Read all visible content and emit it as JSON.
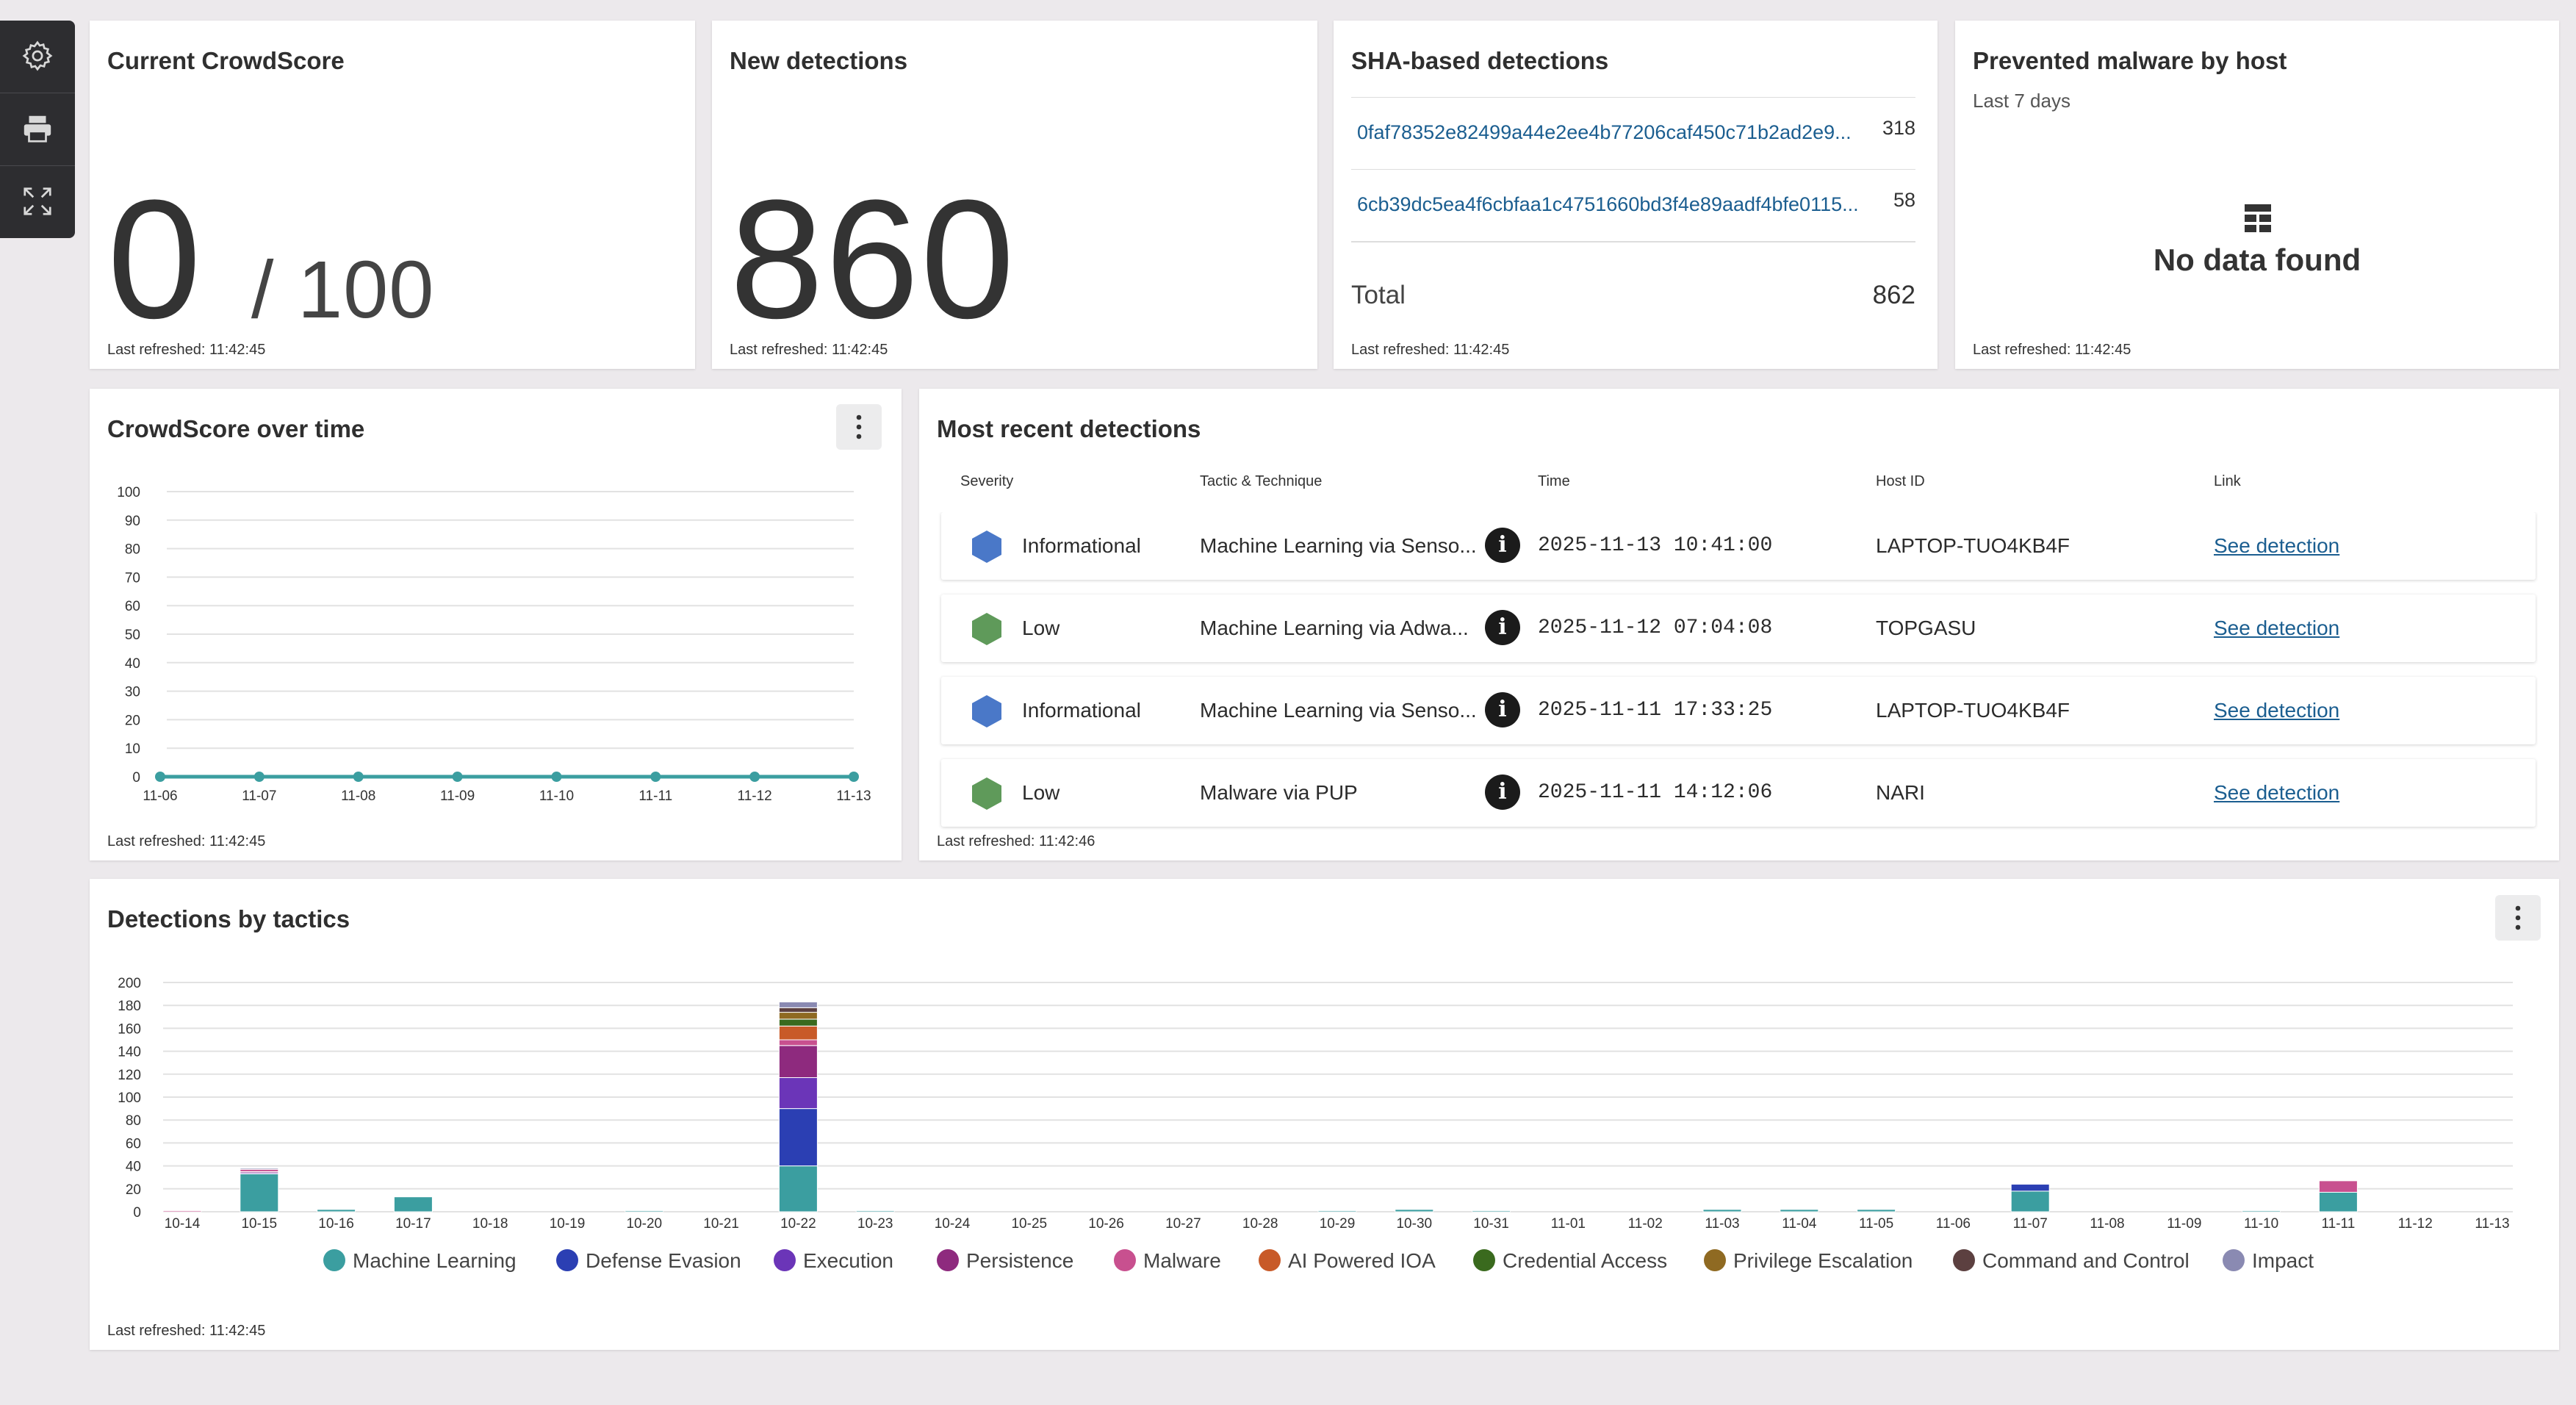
{
  "refreshed": "Last refreshed: 11:42:45",
  "refreshed_recent": "Last refreshed: 11:42:46",
  "crowdscore": {
    "title": "Current CrowdScore",
    "value": "0",
    "denominator": "/ 100"
  },
  "new_detections": {
    "title": "New detections",
    "value": "860"
  },
  "sha": {
    "title": "SHA-based detections",
    "rows": [
      {
        "hash": "0faf78352e82499a44e2ee4b77206caf450c71b2ad2e9...",
        "count": "318"
      },
      {
        "hash": "6cb39dc5ea4f6cbfaa1c4751660bd3f4e89aadf4bfe0115...",
        "count": "58"
      }
    ],
    "total_label": "Total",
    "total_value": "862"
  },
  "prevented": {
    "title": "Prevented malware by host",
    "subtitle": "Last 7 days",
    "empty": "No data found"
  },
  "recent": {
    "title": "Most recent detections",
    "headers": [
      "Severity",
      "Tactic & Technique",
      "Time",
      "Host ID",
      "Link"
    ],
    "rows": [
      {
        "severity": "Informational",
        "tactic": "Machine Learning via Senso...",
        "time": "2025-11-13 10:41:00",
        "host": "LAPTOP-TUO4KB4F",
        "link": "See detection"
      },
      {
        "severity": "Low",
        "tactic": "Machine Learning via Adwa...",
        "time": "2025-11-12 07:04:08",
        "host": "TOPGASU",
        "link": "See detection"
      },
      {
        "severity": "Informational",
        "tactic": "Machine Learning via Senso...",
        "time": "2025-11-11 17:33:25",
        "host": "LAPTOP-TUO4KB4F",
        "link": "See detection"
      },
      {
        "severity": "Low",
        "tactic": "Malware via PUP",
        "time": "2025-11-11 14:12:06",
        "host": "NARI",
        "link": "See detection"
      }
    ],
    "severity_colors": {
      "Informational": "#4a78c8",
      "Low": "#5f9a5a"
    }
  },
  "crowdscore_time": {
    "title": "CrowdScore over time"
  },
  "tactics": {
    "title": "Detections by tactics"
  },
  "icons": {
    "toolbar": [
      "gear-icon",
      "printer-icon",
      "expand-icon"
    ],
    "kebab": "more-vertical-icon",
    "empty": "table-icon",
    "info": "info-icon"
  },
  "colors": {
    "accent": "#3b9ea0",
    "link": "#1b5e90"
  },
  "chart_data": [
    {
      "type": "line",
      "x": [
        "11-06",
        "11-07",
        "11-08",
        "11-09",
        "11-10",
        "11-11",
        "11-12",
        "11-13"
      ],
      "series": [
        {
          "values": [
            0,
            0,
            0,
            0,
            0,
            0,
            0,
            0
          ],
          "color": "#3b9ea0"
        }
      ],
      "ylim": [
        0,
        100
      ],
      "yticks": [
        0,
        10,
        20,
        30,
        40,
        50,
        60,
        70,
        80,
        90,
        100
      ],
      "grid": true
    },
    {
      "type": "bar",
      "stacked": true,
      "categories": [
        "10-14",
        "10-15",
        "10-16",
        "10-17",
        "10-18",
        "10-19",
        "10-20",
        "10-21",
        "10-22",
        "10-23",
        "10-24",
        "10-25",
        "10-26",
        "10-27",
        "10-28",
        "10-29",
        "10-30",
        "10-31",
        "11-01",
        "11-02",
        "11-03",
        "11-04",
        "11-05",
        "11-06",
        "11-07",
        "11-08",
        "11-09",
        "11-10",
        "11-11",
        "11-12",
        "11-13"
      ],
      "ylim": [
        0,
        200
      ],
      "yticks": [
        0,
        20,
        40,
        60,
        80,
        100,
        120,
        140,
        160,
        180,
        200
      ],
      "grid": true,
      "legend_position": "bottom",
      "series": [
        {
          "name": "Machine Learning",
          "color": "#3b9ea0",
          "values": [
            0,
            33,
            2,
            13,
            0,
            0,
            1,
            0,
            40,
            1,
            0,
            0,
            0,
            0,
            0,
            1,
            2,
            1,
            0,
            0,
            2,
            2,
            2,
            0,
            18,
            0,
            0,
            1,
            17,
            0,
            0
          ]
        },
        {
          "name": "Defense Evasion",
          "color": "#2b3fb3",
          "values": [
            0,
            0,
            0,
            0,
            0,
            0,
            0,
            0,
            50,
            0,
            0,
            0,
            0,
            0,
            0,
            0,
            0,
            0,
            0,
            0,
            0,
            0,
            0,
            0,
            6,
            0,
            0,
            0,
            0,
            0,
            0
          ]
        },
        {
          "name": "Execution",
          "color": "#6b35b8",
          "values": [
            0,
            1,
            0,
            0,
            0,
            0,
            0,
            0,
            27,
            0,
            0,
            0,
            0,
            0,
            0,
            0,
            0,
            0,
            0,
            0,
            0,
            0,
            0,
            0,
            0,
            0,
            0,
            0,
            0,
            0,
            0
          ]
        },
        {
          "name": "Persistence",
          "color": "#8e2a7e",
          "values": [
            0,
            1,
            0,
            0,
            0,
            0,
            0,
            0,
            28,
            0,
            0,
            0,
            0,
            0,
            0,
            0,
            0,
            0,
            0,
            0,
            0,
            0,
            0,
            0,
            0,
            0,
            0,
            0,
            0,
            0,
            0
          ]
        },
        {
          "name": "Malware",
          "color": "#c8508f",
          "values": [
            1,
            2,
            0,
            0,
            0,
            0,
            0,
            0,
            5,
            0,
            0,
            0,
            0,
            0,
            0,
            0,
            0,
            0,
            0,
            0,
            0,
            0,
            0,
            0,
            0,
            0,
            0,
            0,
            10,
            0,
            0
          ]
        },
        {
          "name": "AI Powered IOA",
          "color": "#c85a28",
          "values": [
            0,
            0,
            0,
            0,
            0,
            0,
            0,
            0,
            12,
            0,
            0,
            0,
            0,
            0,
            0,
            0,
            0,
            0,
            0,
            0,
            0,
            0,
            0,
            0,
            0,
            0,
            0,
            0,
            0,
            0,
            0
          ]
        },
        {
          "name": "Credential Access",
          "color": "#3a6a1e",
          "values": [
            0,
            0,
            0,
            0,
            0,
            0,
            0,
            0,
            6,
            0,
            0,
            0,
            0,
            0,
            0,
            0,
            0,
            0,
            0,
            0,
            0,
            0,
            0,
            0,
            0,
            0,
            0,
            0,
            0,
            0,
            0
          ]
        },
        {
          "name": "Privilege Escalation",
          "color": "#8f6a22",
          "values": [
            0,
            0,
            0,
            0,
            0,
            0,
            0,
            0,
            6,
            0,
            0,
            0,
            0,
            0,
            0,
            0,
            0,
            0,
            0,
            0,
            0,
            0,
            0,
            0,
            0,
            0,
            0,
            0,
            0,
            0,
            0
          ]
        },
        {
          "name": "Command and Control",
          "color": "#5c4040",
          "values": [
            0,
            0,
            0,
            0,
            0,
            0,
            0,
            0,
            4,
            0,
            0,
            0,
            0,
            0,
            0,
            0,
            0,
            0,
            0,
            0,
            0,
            0,
            0,
            0,
            0,
            0,
            0,
            0,
            0,
            0,
            0
          ]
        },
        {
          "name": "Impact",
          "color": "#8a8ab2",
          "values": [
            0,
            1,
            0,
            0,
            0,
            0,
            0,
            0,
            5,
            0,
            0,
            0,
            0,
            0,
            0,
            0,
            0,
            0,
            0,
            0,
            0,
            0,
            0,
            0,
            0,
            0,
            0,
            0,
            0,
            0,
            0
          ]
        }
      ]
    }
  ]
}
